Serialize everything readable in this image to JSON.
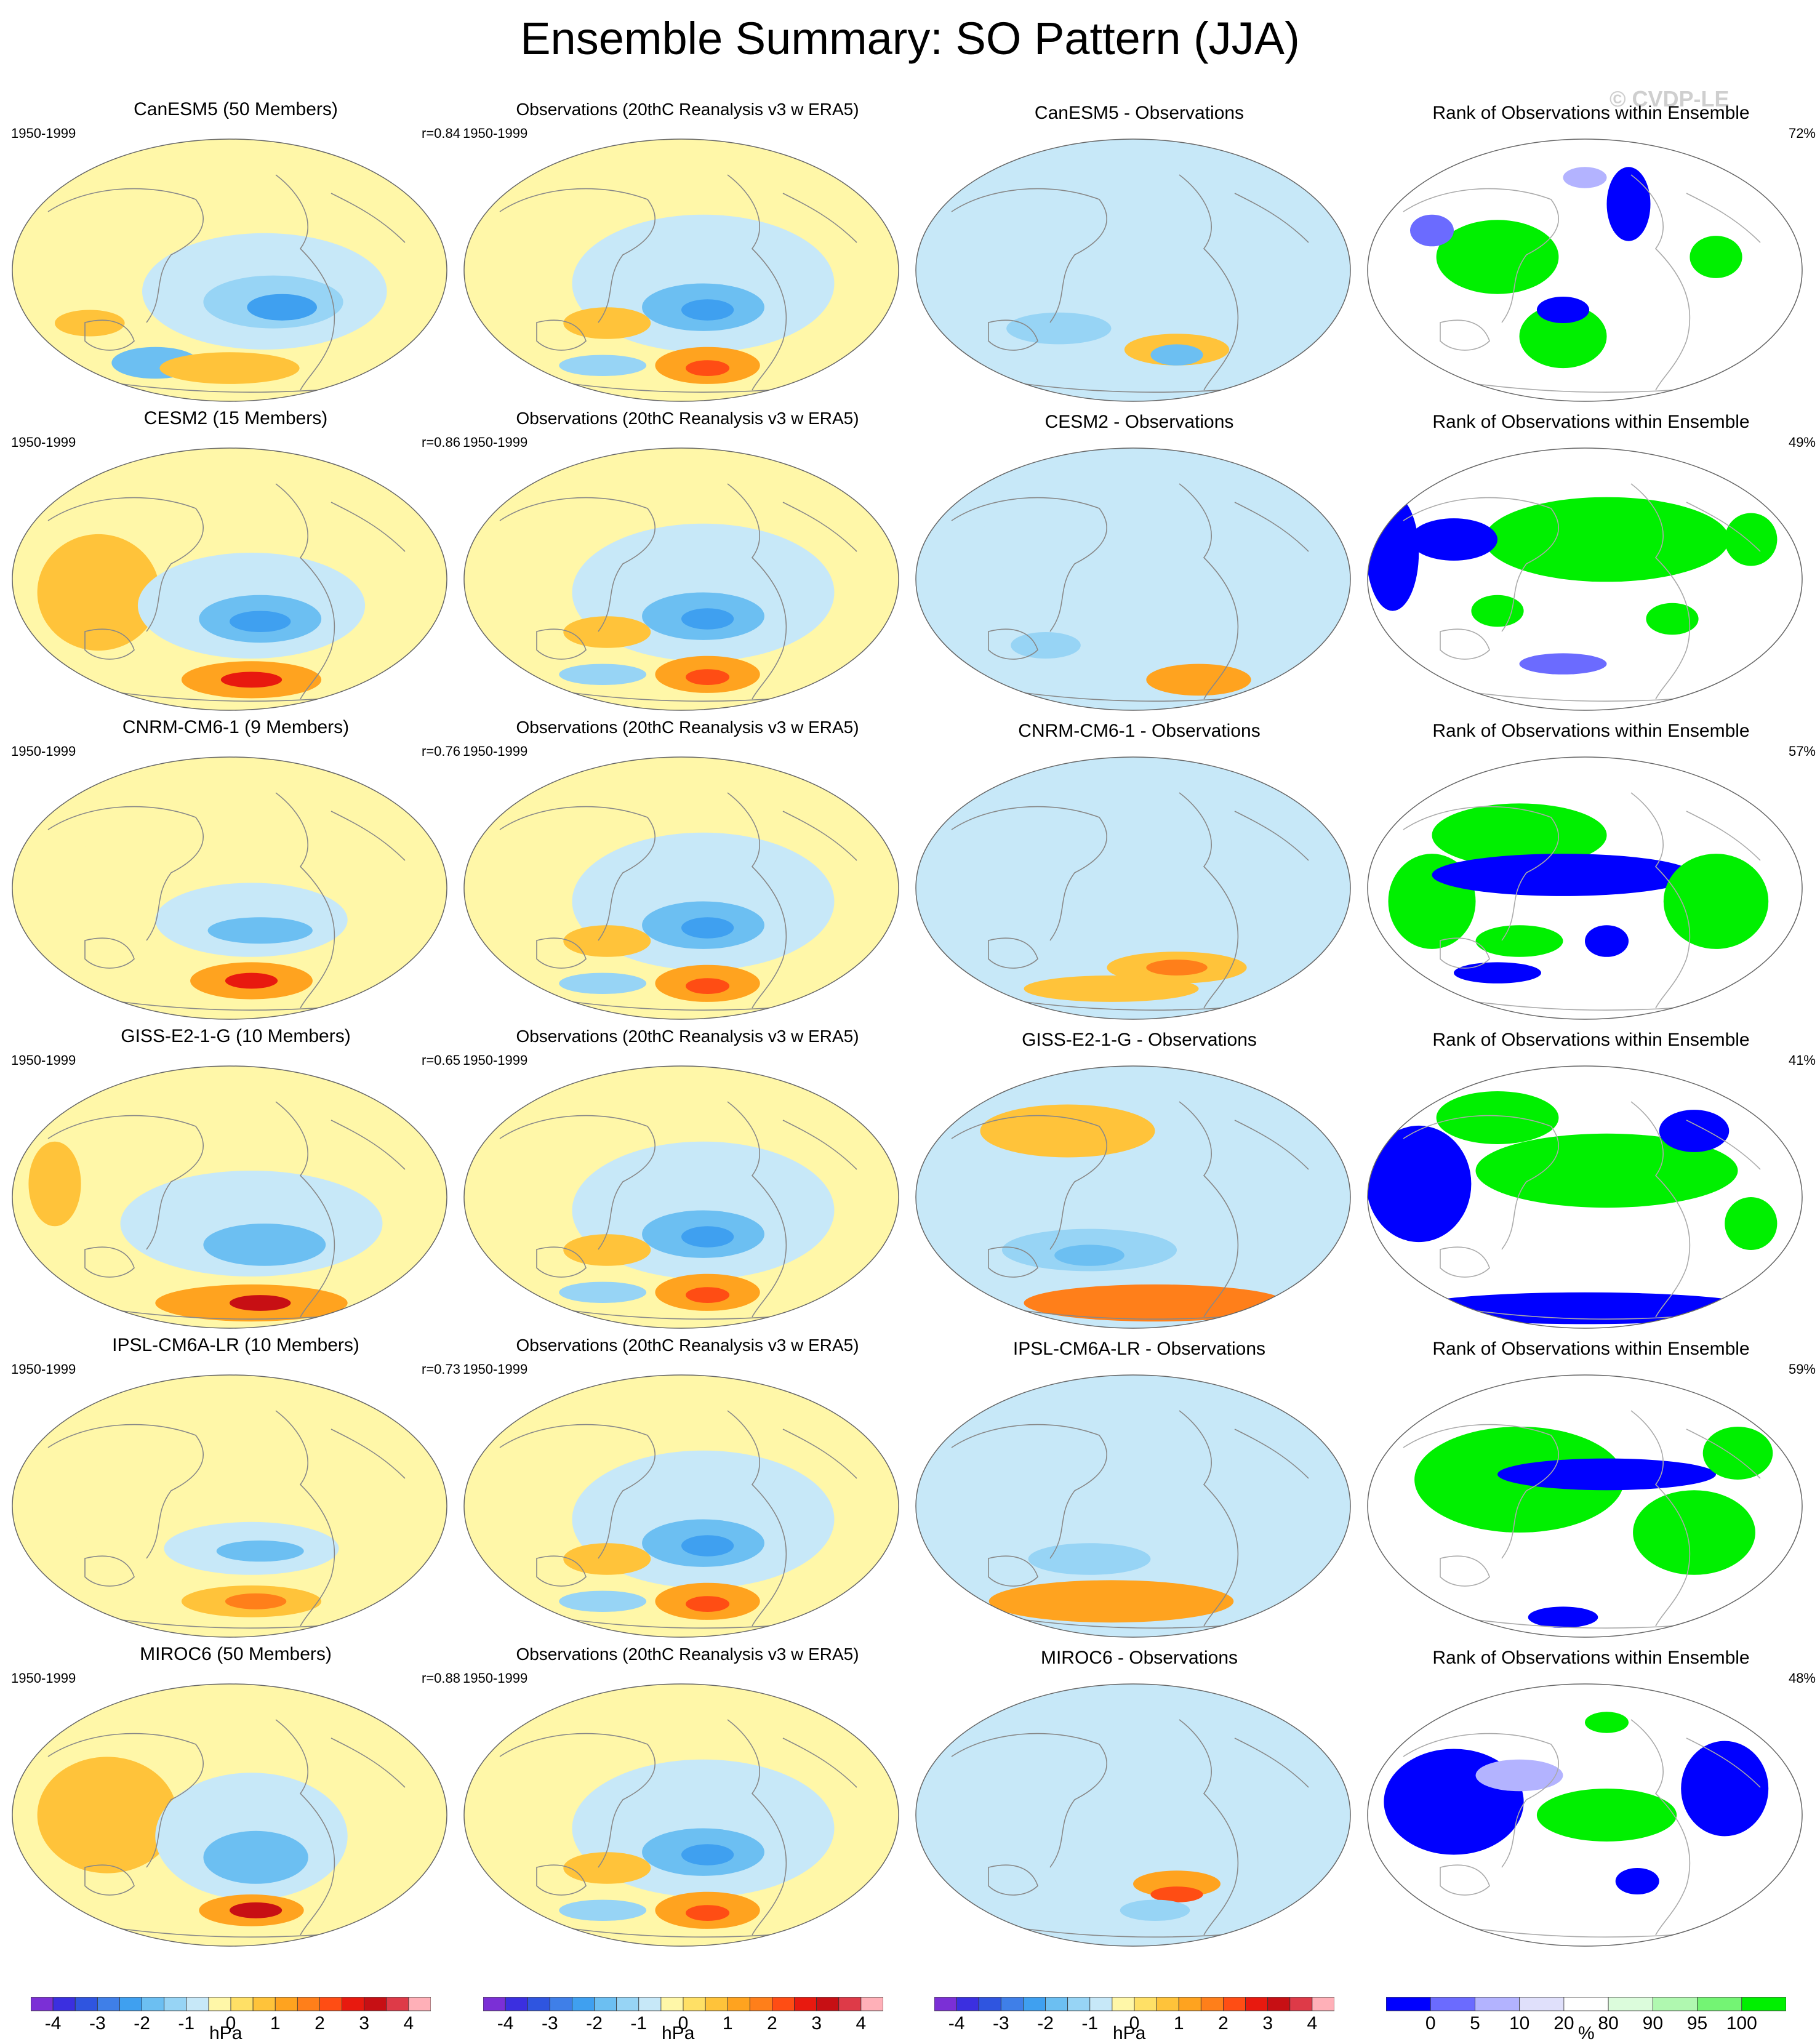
{
  "title": "Ensemble Summary: SO Pattern (JJA)",
  "watermark": "© CVDP-LE",
  "observations_label": "Observations (20thC Reanalysis v3 w ERA5)",
  "rank_title": "Rank of Observations within Ensemble",
  "period": "1950-1999",
  "rows": [
    {
      "model": "CanESM5 (50 Members)",
      "diff_title": "CanESM5 - Observations",
      "r": "r=0.84",
      "rank_pct": "72%"
    },
    {
      "model": "CESM2 (15 Members)",
      "diff_title": "CESM2 - Observations",
      "r": "r=0.86",
      "rank_pct": "49%"
    },
    {
      "model": "CNRM-CM6-1 (9 Members)",
      "diff_title": "CNRM-CM6-1 - Observations",
      "r": "r=0.76",
      "rank_pct": "57%"
    },
    {
      "model": "GISS-E2-1-G (10 Members)",
      "diff_title": "GISS-E2-1-G - Observations",
      "r": "r=0.65",
      "rank_pct": "41%"
    },
    {
      "model": "IPSL-CM6A-LR (10 Members)",
      "diff_title": "IPSL-CM6A-LR - Observations",
      "r": "r=0.73",
      "rank_pct": "59%"
    },
    {
      "model": "MIROC6 (50 Members)",
      "diff_title": "MIROC6 - Observations",
      "r": "r=0.88",
      "rank_pct": "48%"
    }
  ],
  "chart_data": {
    "type": "heatmap",
    "projection": "global map grid, 6 rows x 4 columns",
    "columns": [
      "model pattern",
      "observations",
      "model minus observations",
      "rank of observations"
    ],
    "pressure_colorbar": {
      "unit": "hPa",
      "tick_labels": [
        "-4",
        "-3",
        "-2",
        "-1",
        "0",
        "1",
        "2",
        "3",
        "4"
      ],
      "colors": [
        "#7b2fd6",
        "#3b2fe0",
        "#2f55e0",
        "#3f7fe8",
        "#3fa0f0",
        "#6cbff2",
        "#97d4f5",
        "#c7e8f8",
        "#fff7a8",
        "#ffe066",
        "#ffc33a",
        "#ffa31f",
        "#ff7f1a",
        "#ff4d14",
        "#e8190f",
        "#c70f14",
        "#de3a48",
        "#ffb0b8"
      ]
    },
    "rank_colorbar": {
      "unit": "%",
      "tick_labels": [
        "0",
        "5",
        "10",
        "20",
        "80",
        "90",
        "95",
        "100"
      ],
      "colors": [
        "#0000ff",
        "#6b6bff",
        "#b3b3ff",
        "#e0e0fb",
        "#ffffff",
        "#dcfcdc",
        "#b0f8b0",
        "#74f474",
        "#00f000"
      ]
    }
  }
}
